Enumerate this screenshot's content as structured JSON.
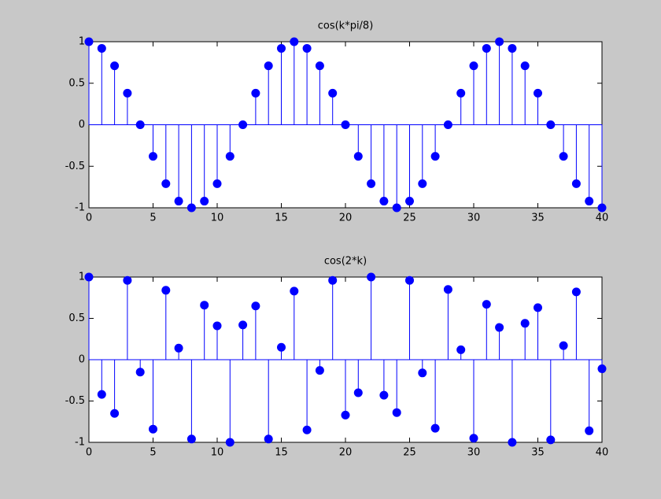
{
  "chart_data": [
    {
      "type": "stem",
      "title": "cos(k*pi/8)",
      "color": "#0000ff",
      "x": [
        0,
        1,
        2,
        3,
        4,
        5,
        6,
        7,
        8,
        9,
        10,
        11,
        12,
        13,
        14,
        15,
        16,
        17,
        18,
        19,
        20,
        21,
        22,
        23,
        24,
        25,
        26,
        27,
        28,
        29,
        30,
        31,
        32,
        33,
        34,
        35,
        36,
        37,
        38,
        39,
        40
      ],
      "values": [
        1,
        0.92,
        0.71,
        0.38,
        0,
        -0.38,
        -0.71,
        -0.92,
        -1,
        -0.92,
        -0.71,
        -0.38,
        0,
        0.38,
        0.71,
        0.92,
        1,
        0.92,
        0.71,
        0.38,
        0,
        -0.38,
        -0.71,
        -0.92,
        -1,
        -0.92,
        -0.71,
        -0.38,
        0,
        0.38,
        0.71,
        0.92,
        1,
        0.92,
        0.71,
        0.38,
        0,
        -0.38,
        -0.71,
        -0.92,
        -1
      ],
      "xlim": [
        0,
        40
      ],
      "xticks": [
        0,
        5,
        10,
        15,
        20,
        25,
        30,
        35,
        40
      ],
      "ylim": [
        -1,
        1
      ],
      "yticks": [
        -1,
        -0.5,
        0,
        0.5,
        1
      ]
    },
    {
      "type": "stem",
      "title": "cos(2*k)",
      "color": "#0000ff",
      "x": [
        0,
        1,
        2,
        3,
        4,
        5,
        6,
        7,
        8,
        9,
        10,
        11,
        12,
        13,
        14,
        15,
        16,
        17,
        18,
        19,
        20,
        21,
        22,
        23,
        24,
        25,
        26,
        27,
        28,
        29,
        30,
        31,
        32,
        33,
        34,
        35,
        36,
        37,
        38,
        39,
        40
      ],
      "values": [
        1,
        -0.42,
        -0.65,
        0.96,
        -0.15,
        -0.84,
        0.84,
        0.14,
        -0.96,
        0.66,
        0.41,
        -1,
        0.42,
        0.65,
        -0.96,
        0.15,
        0.83,
        -0.85,
        -0.13,
        0.96,
        -0.67,
        -0.4,
        1,
        -0.43,
        -0.64,
        0.96,
        -0.16,
        -0.83,
        0.85,
        0.12,
        -0.95,
        0.67,
        0.39,
        -1,
        0.44,
        0.63,
        -0.97,
        0.17,
        0.82,
        -0.86,
        -0.11
      ],
      "xlim": [
        0,
        40
      ],
      "xticks": [
        0,
        5,
        10,
        15,
        20,
        25,
        30,
        35,
        40
      ],
      "ylim": [
        -1,
        1
      ],
      "yticks": [
        -1,
        -0.5,
        0,
        0.5,
        1
      ]
    }
  ]
}
